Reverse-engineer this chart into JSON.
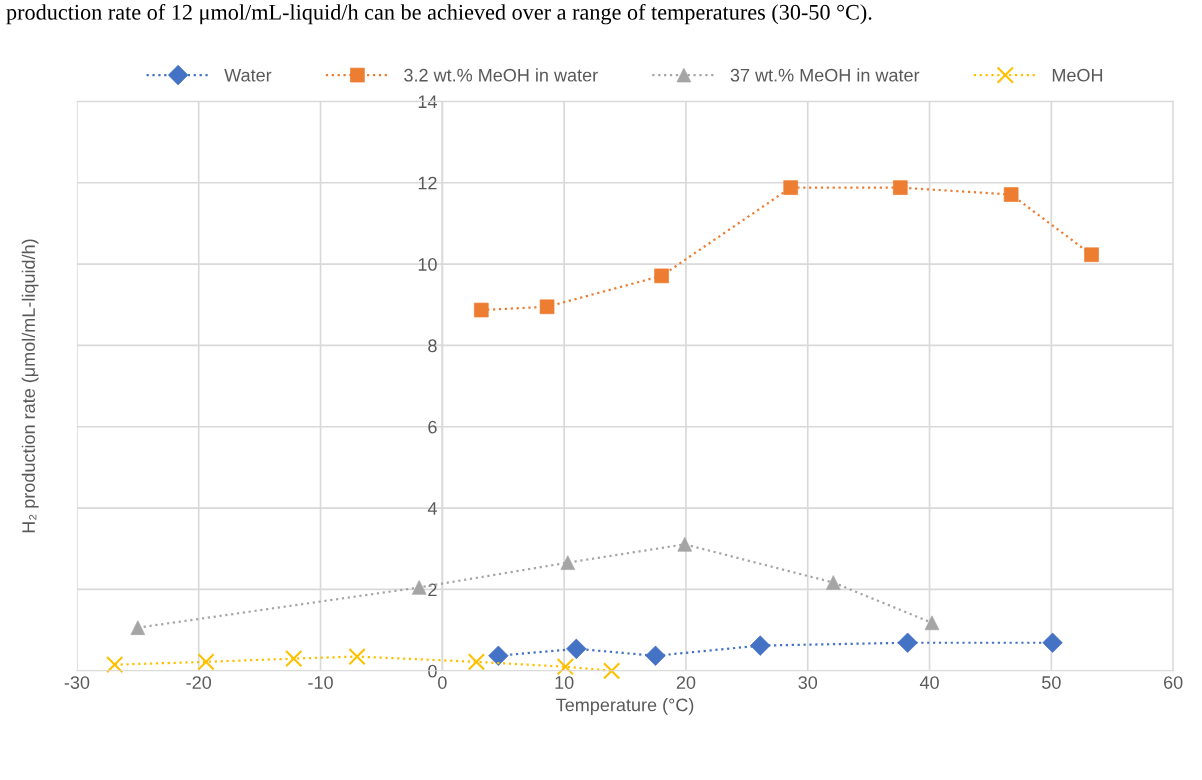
{
  "chart_data": {
    "type": "line",
    "xlabel": "Temperature (°C)",
    "ylabel": "H₂ production rate (μmol/mL-liquid/h)",
    "annotations": [
      "production rate of 12 μmol/mL-liquid/h can be achieved over a range of temperatures (30-50 °C)."
    ],
    "xlim": [
      -30,
      60
    ],
    "xticks": [
      -30,
      -20,
      -10,
      0,
      10,
      20,
      30,
      40,
      50,
      60
    ],
    "ylim": [
      0,
      14
    ],
    "yticks": [
      0,
      2,
      4,
      6,
      8,
      10,
      12,
      14
    ],
    "grid": true,
    "legend": "top",
    "line_style": "dotted",
    "series": [
      {
        "name": "Water",
        "color": "#4472c4",
        "marker": "diamond",
        "x": [
          4.6,
          11.0,
          17.5,
          26.1,
          38.2,
          50.1
        ],
        "values": [
          0.37,
          0.54,
          0.37,
          0.62,
          0.69,
          0.69
        ]
      },
      {
        "name": "3.2 wt.% MeOH in water",
        "color": "#ed7d31",
        "marker": "square",
        "x": [
          3.2,
          8.6,
          18.0,
          28.6,
          37.6,
          46.7,
          53.3
        ],
        "values": [
          8.87,
          8.95,
          9.71,
          11.88,
          11.88,
          11.71,
          10.23
        ]
      },
      {
        "name": "37 wt.% MeOH in water",
        "color": "#a5a5a5",
        "marker": "triangle",
        "x": [
          -25.0,
          -1.9,
          10.3,
          19.9,
          32.1,
          40.2
        ],
        "values": [
          1.06,
          2.05,
          2.66,
          3.11,
          2.17,
          1.18
        ]
      },
      {
        "name": "MeOH",
        "color": "#ffc000",
        "marker": "cross",
        "x": [
          -26.9,
          -19.4,
          -12.2,
          -7.0,
          2.8,
          10.1,
          13.9
        ],
        "values": [
          0.15,
          0.22,
          0.3,
          0.35,
          0.22,
          0.1,
          0.0
        ]
      }
    ]
  }
}
